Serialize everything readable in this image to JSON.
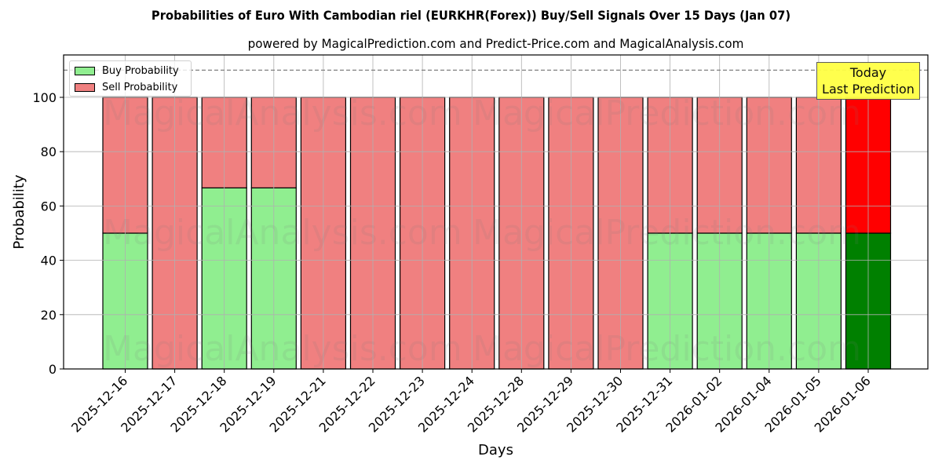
{
  "chart_data": {
    "type": "bar",
    "stacked": true,
    "title": "Probabilities of Euro With Cambodian riel (EURKHR(Forex)) Buy/Sell Signals Over 15 Days (Jan 07)",
    "subtitle": "powered by MagicalPrediction.com and Predict-Price.com and MagicalAnalysis.com",
    "xlabel": "Days",
    "ylabel": "Probability",
    "ylim": [
      0,
      115
    ],
    "yticks": [
      0,
      20,
      40,
      60,
      80,
      100
    ],
    "grid": true,
    "legend_position": "upper left",
    "reference_line": {
      "y": 110,
      "style": "dashed",
      "color": "#808080"
    },
    "categories": [
      "2025-12-16",
      "2025-12-17",
      "2025-12-18",
      "2025-12-19",
      "2025-12-21",
      "2025-12-22",
      "2025-12-23",
      "2025-12-24",
      "2025-12-28",
      "2025-12-29",
      "2025-12-30",
      "2025-12-31",
      "2026-01-02",
      "2026-01-04",
      "2026-01-05",
      "2026-01-06"
    ],
    "series": [
      {
        "name": "Buy Probability",
        "color": "#90ee90",
        "values": [
          50,
          0,
          66.67,
          66.67,
          0,
          0,
          0,
          0,
          0,
          0,
          0,
          50,
          50,
          50,
          50,
          50
        ]
      },
      {
        "name": "Sell Probability",
        "color": "#f08080",
        "values": [
          50,
          100,
          33.33,
          33.33,
          100,
          100,
          100,
          100,
          100,
          100,
          100,
          50,
          50,
          50,
          50,
          50
        ]
      }
    ],
    "highlight": {
      "index": 15,
      "buy_color": "#008000",
      "sell_color": "#ff0000",
      "annotation": "Today\nLast Prediction"
    }
  },
  "legend": {
    "buy_label": "Buy Probability",
    "sell_label": "Sell Probability"
  },
  "annotation": {
    "line1": "Today",
    "line2": "Last Prediction"
  },
  "watermarks": [
    "MagicalAnalysis.com",
    "MagicalPrediction.com"
  ]
}
